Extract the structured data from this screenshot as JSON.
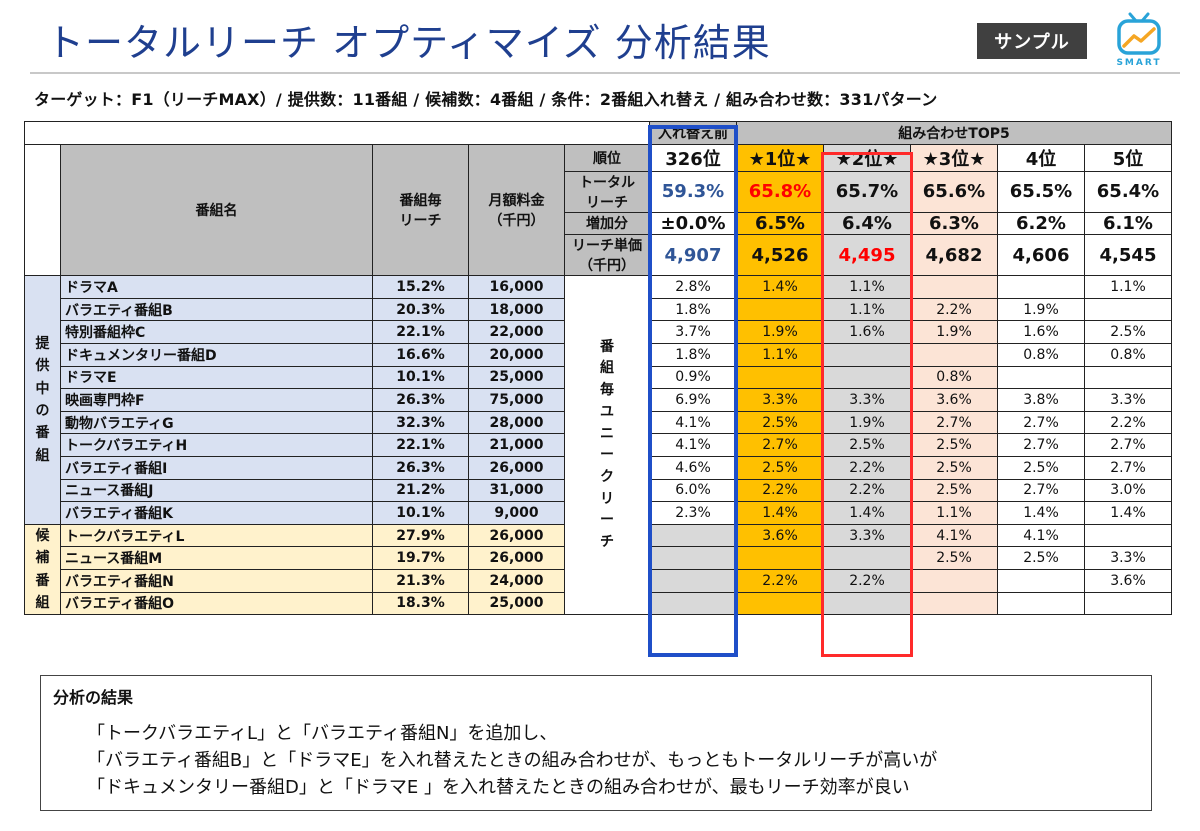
{
  "header": {
    "title": "トータルリーチ オプティマイズ 分析結果",
    "sample_badge": "サンプル",
    "logo_text": "SMART",
    "logo_icon": "tv-chart-icon"
  },
  "subtitle": "ターゲット：F1（リーチMAX）/ 提供数：11番組 / 候補数：4番組 / 条件：2番組入れ替え / 組み合わせ数：331パターン",
  "table": {
    "group_headers": {
      "before": "入れ替え前",
      "top5": "組み合わせTOP5"
    },
    "col_program": "番組名",
    "col_reach": "番組毎\nリーチ",
    "col_fee": "月額料金\n（千円）",
    "metric_labels": {
      "rank": "順位",
      "total_reach": "トータル\nリーチ",
      "increase": "増加分",
      "unit_cost": "リーチ単価\n（千円）"
    },
    "metric_columns": [
      {
        "rank": "326位",
        "total_reach": "59.3%",
        "increase": "±0.0%",
        "unit_cost": "4,907"
      },
      {
        "rank": "★1位★",
        "total_reach": "65.8%",
        "increase": "6.5%",
        "unit_cost": "4,526"
      },
      {
        "rank": "★2位★",
        "total_reach": "65.7%",
        "increase": "6.4%",
        "unit_cost": "4,495"
      },
      {
        "rank": "★3位★",
        "total_reach": "65.6%",
        "increase": "6.3%",
        "unit_cost": "4,682"
      },
      {
        "rank": "4位",
        "total_reach": "65.5%",
        "increase": "6.2%",
        "unit_cost": "4,606"
      },
      {
        "rank": "5位",
        "total_reach": "65.4%",
        "increase": "6.1%",
        "unit_cost": "4,545"
      }
    ],
    "unique_reach_label": "番\n組\n毎\nユ\nニ\nー\nク\nリ\nー\nチ",
    "categories": {
      "provided": "提\n供\n中\nの\n番\n組",
      "candidates": "候\n補\n番\n組"
    },
    "provided_rows": [
      {
        "name": "ドラマA",
        "reach": "15.2%",
        "fee": "16,000",
        "cells": [
          "2.8%",
          "1.4%",
          "1.1%",
          "",
          "",
          "1.1%"
        ]
      },
      {
        "name": "バラエティ番組B",
        "reach": "20.3%",
        "fee": "18,000",
        "cells": [
          "1.8%",
          "",
          "1.1%",
          "2.2%",
          "1.9%",
          ""
        ]
      },
      {
        "name": "特別番組枠C",
        "reach": "22.1%",
        "fee": "22,000",
        "cells": [
          "3.7%",
          "1.9%",
          "1.6%",
          "1.9%",
          "1.6%",
          "2.5%"
        ]
      },
      {
        "name": "ドキュメンタリー番組D",
        "reach": "16.6%",
        "fee": "20,000",
        "cells": [
          "1.8%",
          "1.1%",
          "",
          "",
          "0.8%",
          "0.8%"
        ]
      },
      {
        "name": "ドラマE",
        "reach": "10.1%",
        "fee": "25,000",
        "cells": [
          "0.9%",
          "",
          "",
          "0.8%",
          "",
          ""
        ]
      },
      {
        "name": "映画専門枠F",
        "reach": "26.3%",
        "fee": "75,000",
        "cells": [
          "6.9%",
          "3.3%",
          "3.3%",
          "3.6%",
          "3.8%",
          "3.3%"
        ]
      },
      {
        "name": "動物バラエティG",
        "reach": "32.3%",
        "fee": "28,000",
        "cells": [
          "4.1%",
          "2.5%",
          "1.9%",
          "2.7%",
          "2.7%",
          "2.2%"
        ]
      },
      {
        "name": "トークバラエティH",
        "reach": "22.1%",
        "fee": "21,000",
        "cells": [
          "4.1%",
          "2.7%",
          "2.5%",
          "2.5%",
          "2.7%",
          "2.7%"
        ]
      },
      {
        "name": "バラエティ番組I",
        "reach": "26.3%",
        "fee": "26,000",
        "cells": [
          "4.6%",
          "2.5%",
          "2.2%",
          "2.5%",
          "2.5%",
          "2.7%"
        ]
      },
      {
        "name": "ニュース番組J",
        "reach": "21.2%",
        "fee": "31,000",
        "cells": [
          "6.0%",
          "2.2%",
          "2.2%",
          "2.5%",
          "2.7%",
          "3.0%"
        ]
      },
      {
        "name": "バラエティ番組K",
        "reach": "10.1%",
        "fee": "9,000",
        "cells": [
          "2.3%",
          "1.4%",
          "1.4%",
          "1.1%",
          "1.4%",
          "1.4%"
        ]
      }
    ],
    "candidate_rows": [
      {
        "name": "トークバラエティL",
        "reach": "27.9%",
        "fee": "26,000",
        "cells": [
          "",
          "3.6%",
          "3.3%",
          "4.1%",
          "4.1%",
          ""
        ]
      },
      {
        "name": "ニュース番組M",
        "reach": "19.7%",
        "fee": "26,000",
        "cells": [
          "",
          "",
          "",
          "2.5%",
          "2.5%",
          "3.3%"
        ]
      },
      {
        "name": "バラエティ番組N",
        "reach": "21.3%",
        "fee": "24,000",
        "cells": [
          "",
          "2.2%",
          "2.2%",
          "",
          "",
          "3.6%"
        ]
      },
      {
        "name": "バラエティ番組O",
        "reach": "18.3%",
        "fee": "25,000",
        "cells": [
          "",
          "",
          "",
          "",
          "",
          ""
        ]
      }
    ],
    "colors": {
      "gray": "#d9d9d9",
      "gold": "#ffc000",
      "pink": "#fce4d6",
      "provided_bg": "#d9e1f2",
      "candidate_bg": "#fff2cc",
      "frame_blue": "#1f4fc8",
      "frame_red": "#ff2a2a",
      "accent_red_text": "#ff0000",
      "accent_blue_text": "#2f5597"
    }
  },
  "result": {
    "title": "分析の結果",
    "lines": [
      "「トークバラエティL」と「バラエティ番組N」を追加し、",
      "「バラエティ番組B」と「ドラマE」を入れ替えたときの組み合わせが、もっともトータルリーチが高いが",
      "「ドキュメンタリー番組D」と「ドラマE 」を入れ替えたときの組み合わせが、最もリーチ効率が良い"
    ]
  }
}
